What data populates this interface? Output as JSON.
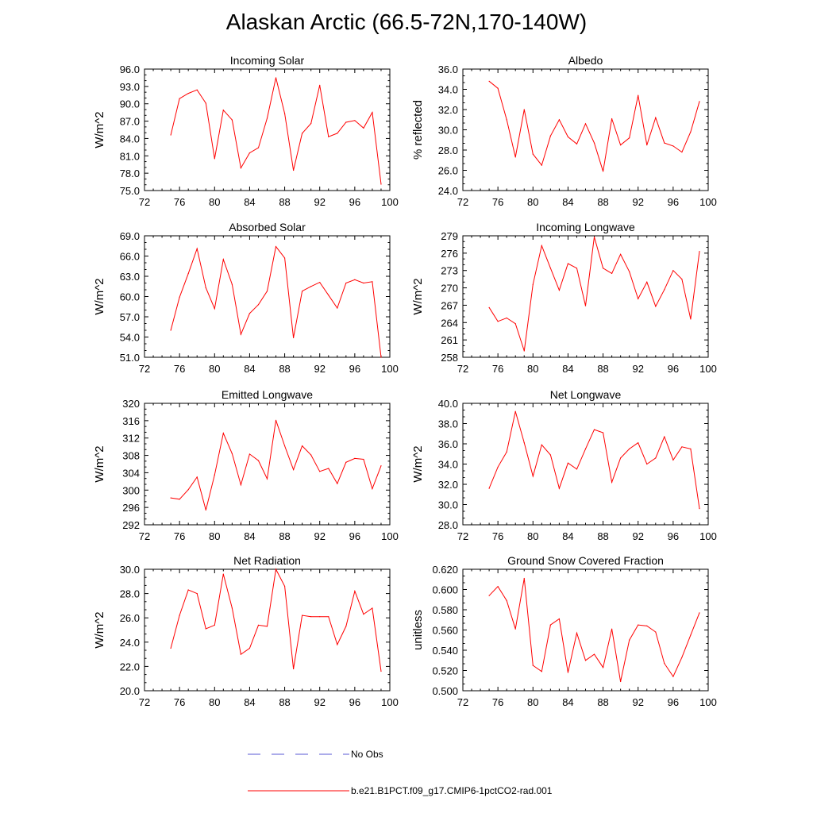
{
  "title": "Alaskan Arctic (66.5-72N,170-140W)",
  "colors": {
    "model": "#ff0000",
    "obs": "#5a5ad6",
    "axis": "#000000"
  },
  "legend": {
    "obs_label": "No Obs",
    "model_label": "b.e21.B1PCT.f09_g17.CMIP6-1pctCO2-rad.001"
  },
  "chart_data": [
    {
      "type": "line",
      "title": "Incoming Solar",
      "xlabel": "",
      "ylabel": "W/m^2",
      "xlim": [
        72,
        100
      ],
      "xticks": [
        72,
        76,
        80,
        84,
        88,
        92,
        96,
        100
      ],
      "ylim": [
        75.0,
        96.0
      ],
      "yticks": [
        "75.0",
        "78.0",
        "81.0",
        "84.0",
        "87.0",
        "90.0",
        "93.0",
        "96.0"
      ],
      "x": [
        75,
        76,
        77,
        78,
        79,
        80,
        81,
        82,
        83,
        84,
        85,
        86,
        87,
        88,
        89,
        90,
        91,
        92,
        93,
        94,
        95,
        96,
        97,
        98,
        99
      ],
      "series": [
        {
          "values": [
            84.6,
            90.9,
            91.8,
            92.4,
            90.1,
            80.5,
            88.9,
            87.2,
            78.9,
            81.5,
            82.4,
            87.5,
            94.5,
            88.3,
            78.5,
            84.9,
            86.6,
            93.2,
            84.3,
            84.9,
            86.8,
            87.1,
            85.8,
            88.5,
            76.1
          ]
        }
      ]
    },
    {
      "type": "line",
      "title": "Albedo",
      "xlabel": "",
      "ylabel": "% reflected",
      "xlim": [
        72,
        100
      ],
      "xticks": [
        72,
        76,
        80,
        84,
        88,
        92,
        96,
        100
      ],
      "ylim": [
        24.0,
        36.0
      ],
      "yticks": [
        "24.0",
        "26.0",
        "28.0",
        "30.0",
        "32.0",
        "34.0",
        "36.0"
      ],
      "x": [
        75,
        76,
        77,
        78,
        79,
        80,
        81,
        82,
        83,
        84,
        85,
        86,
        87,
        88,
        89,
        90,
        91,
        92,
        93,
        94,
        95,
        96,
        97,
        98,
        99
      ],
      "series": [
        {
          "values": [
            34.8,
            34.1,
            31.0,
            27.3,
            32.0,
            27.6,
            26.5,
            29.4,
            31.0,
            29.3,
            28.6,
            30.6,
            28.7,
            25.9,
            31.1,
            28.5,
            29.2,
            33.4,
            28.5,
            31.2,
            28.7,
            28.4,
            27.8,
            29.8,
            32.8
          ]
        }
      ]
    },
    {
      "type": "line",
      "title": "Absorbed Solar",
      "xlabel": "",
      "ylabel": "W/m^2",
      "xlim": [
        72,
        100
      ],
      "xticks": [
        72,
        76,
        80,
        84,
        88,
        92,
        96,
        100
      ],
      "ylim": [
        51.0,
        69.0
      ],
      "yticks": [
        "51.0",
        "54.0",
        "57.0",
        "60.0",
        "63.0",
        "66.0",
        "69.0"
      ],
      "x": [
        75,
        76,
        77,
        78,
        79,
        80,
        81,
        82,
        83,
        84,
        85,
        86,
        87,
        88,
        89,
        90,
        91,
        92,
        93,
        94,
        95,
        96,
        97,
        98,
        99
      ],
      "series": [
        {
          "values": [
            55.0,
            59.9,
            63.4,
            67.1,
            61.3,
            58.2,
            65.5,
            61.8,
            54.4,
            57.5,
            58.8,
            60.8,
            67.4,
            65.7,
            53.9,
            60.8,
            61.5,
            62.1,
            60.2,
            58.3,
            62.0,
            62.5,
            62.0,
            62.2,
            50.8
          ]
        }
      ]
    },
    {
      "type": "line",
      "title": "Incoming Longwave",
      "xlabel": "",
      "ylabel": "W/m^2",
      "xlim": [
        72,
        100
      ],
      "xticks": [
        72,
        76,
        80,
        84,
        88,
        92,
        96,
        100
      ],
      "ylim": [
        258,
        279
      ],
      "yticks": [
        "258",
        "261",
        "264",
        "267",
        "270",
        "273",
        "276",
        "279"
      ],
      "x": [
        75,
        76,
        77,
        78,
        79,
        80,
        81,
        82,
        83,
        84,
        85,
        86,
        87,
        88,
        89,
        90,
        91,
        92,
        93,
        94,
        95,
        96,
        97,
        98,
        99
      ],
      "series": [
        {
          "values": [
            266.6,
            264.2,
            264.8,
            263.8,
            259.1,
            270.6,
            277.3,
            273.4,
            269.6,
            274.2,
            273.4,
            266.9,
            278.8,
            273.4,
            272.5,
            275.8,
            272.8,
            268.1,
            271.0,
            266.8,
            269.7,
            273.0,
            271.5,
            264.6,
            276.3
          ]
        }
      ]
    },
    {
      "type": "line",
      "title": "Emitted Longwave",
      "xlabel": "",
      "ylabel": "W/m^2",
      "xlim": [
        72,
        100
      ],
      "xticks": [
        72,
        76,
        80,
        84,
        88,
        92,
        96,
        100
      ],
      "ylim": [
        292,
        320
      ],
      "yticks": [
        "292",
        "296",
        "300",
        "304",
        "308",
        "312",
        "316",
        "320"
      ],
      "x": [
        75,
        76,
        77,
        78,
        79,
        80,
        81,
        82,
        83,
        84,
        85,
        86,
        87,
        88,
        89,
        90,
        91,
        92,
        93,
        94,
        95,
        96,
        97,
        98,
        99
      ],
      "series": [
        {
          "values": [
            298.2,
            297.9,
            300.1,
            303.0,
            295.4,
            303.5,
            313.1,
            308.4,
            301.2,
            308.3,
            306.8,
            302.6,
            316.1,
            310.2,
            304.7,
            310.2,
            308.1,
            304.3,
            305.0,
            301.5,
            306.4,
            307.3,
            307.1,
            300.3,
            305.6
          ]
        }
      ]
    },
    {
      "type": "line",
      "title": "Net Longwave",
      "xlabel": "",
      "ylabel": "W/m^2",
      "xlim": [
        72,
        100
      ],
      "xticks": [
        72,
        76,
        80,
        84,
        88,
        92,
        96,
        100
      ],
      "ylim": [
        28.0,
        40.0
      ],
      "yticks": [
        "28.0",
        "30.0",
        "32.0",
        "34.0",
        "36.0",
        "38.0",
        "40.0"
      ],
      "x": [
        75,
        76,
        77,
        78,
        79,
        80,
        81,
        82,
        83,
        84,
        85,
        86,
        87,
        88,
        89,
        90,
        91,
        92,
        93,
        94,
        95,
        96,
        97,
        98,
        99
      ],
      "series": [
        {
          "values": [
            31.6,
            33.7,
            35.2,
            39.2,
            36.1,
            32.8,
            35.9,
            34.9,
            31.6,
            34.1,
            33.5,
            35.5,
            37.4,
            37.1,
            32.2,
            34.6,
            35.5,
            36.1,
            34.0,
            34.6,
            36.7,
            34.4,
            35.7,
            35.5,
            29.6
          ]
        }
      ]
    },
    {
      "type": "line",
      "title": "Net Radiation",
      "xlabel": "",
      "ylabel": "W/m^2",
      "xlim": [
        72,
        100
      ],
      "xticks": [
        72,
        76,
        80,
        84,
        88,
        92,
        96,
        100
      ],
      "ylim": [
        20.0,
        30.0
      ],
      "yticks": [
        "20.0",
        "22.0",
        "24.0",
        "26.0",
        "28.0",
        "30.0"
      ],
      "x": [
        75,
        76,
        77,
        78,
        79,
        80,
        81,
        82,
        83,
        84,
        85,
        86,
        87,
        88,
        89,
        90,
        91,
        92,
        93,
        94,
        95,
        96,
        97,
        98,
        99
      ],
      "series": [
        {
          "values": [
            23.5,
            26.2,
            28.3,
            28.0,
            25.1,
            25.4,
            29.6,
            26.8,
            23.0,
            23.5,
            25.4,
            25.3,
            30.0,
            28.6,
            21.8,
            26.2,
            26.1,
            26.1,
            26.1,
            23.8,
            25.3,
            28.2,
            26.3,
            26.8,
            21.6
          ]
        }
      ]
    },
    {
      "type": "line",
      "title": "Ground Snow Covered Fraction",
      "xlabel": "",
      "ylabel": "unitless",
      "xlim": [
        72,
        100
      ],
      "xticks": [
        72,
        76,
        80,
        84,
        88,
        92,
        96,
        100
      ],
      "ylim": [
        0.5,
        0.62
      ],
      "yticks": [
        "0.500",
        "0.520",
        "0.540",
        "0.560",
        "0.580",
        "0.600",
        "0.620"
      ],
      "x": [
        75,
        76,
        77,
        78,
        79,
        80,
        81,
        82,
        83,
        84,
        85,
        86,
        87,
        88,
        89,
        90,
        91,
        92,
        93,
        94,
        95,
        96,
        97,
        98,
        99
      ],
      "series": [
        {
          "values": [
            0.594,
            0.603,
            0.589,
            0.561,
            0.611,
            0.525,
            0.519,
            0.565,
            0.571,
            0.518,
            0.557,
            0.53,
            0.536,
            0.523,
            0.561,
            0.509,
            0.55,
            0.565,
            0.564,
            0.558,
            0.527,
            0.514,
            0.533,
            0.555,
            0.577
          ]
        }
      ]
    }
  ]
}
